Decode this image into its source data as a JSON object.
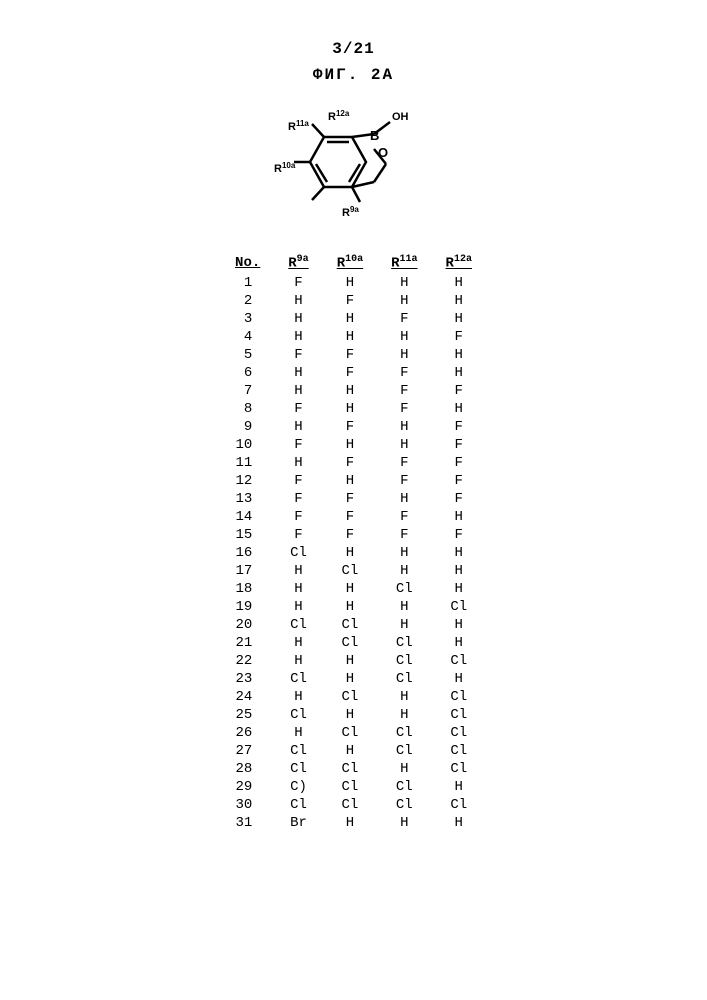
{
  "page_number": "3/21",
  "figure_label": "ФИГ. 2A",
  "structure": {
    "r9": "R",
    "r9_sup": "9a",
    "r10": "R",
    "r10_sup": "10a",
    "r11": "R",
    "r11_sup": "11a",
    "r12": "R",
    "r12_sup": "12a",
    "oh": "OH",
    "b": "B",
    "o": "O"
  },
  "headers": {
    "no": "No.",
    "r9": "R",
    "r9_sup": "9a",
    "r10": "R",
    "r10_sup": "10a",
    "r11": "R",
    "r11_sup": "11a",
    "r12": "R",
    "r12_sup": "12a"
  },
  "rows": [
    {
      "no": "1",
      "r9": "F",
      "r10": "H",
      "r11": "H",
      "r12": "H"
    },
    {
      "no": "2",
      "r9": "H",
      "r10": "F",
      "r11": "H",
      "r12": "H"
    },
    {
      "no": "3",
      "r9": "H",
      "r10": "H",
      "r11": "F",
      "r12": "H"
    },
    {
      "no": "4",
      "r9": "H",
      "r10": "H",
      "r11": "H",
      "r12": "F"
    },
    {
      "no": "5",
      "r9": "F",
      "r10": "F",
      "r11": "H",
      "r12": "H"
    },
    {
      "no": "6",
      "r9": "H",
      "r10": "F",
      "r11": "F",
      "r12": "H"
    },
    {
      "no": "7",
      "r9": "H",
      "r10": "H",
      "r11": "F",
      "r12": "F"
    },
    {
      "no": "8",
      "r9": "F",
      "r10": "H",
      "r11": "F",
      "r12": "H"
    },
    {
      "no": "9",
      "r9": "H",
      "r10": "F",
      "r11": "H",
      "r12": "F"
    },
    {
      "no": "10",
      "r9": "F",
      "r10": "H",
      "r11": "H",
      "r12": "F"
    },
    {
      "no": "11",
      "r9": "H",
      "r10": "F",
      "r11": "F",
      "r12": "F"
    },
    {
      "no": "12",
      "r9": "F",
      "r10": "H",
      "r11": "F",
      "r12": "F"
    },
    {
      "no": "13",
      "r9": "F",
      "r10": "F",
      "r11": "H",
      "r12": "F"
    },
    {
      "no": "14",
      "r9": "F",
      "r10": "F",
      "r11": "F",
      "r12": "H"
    },
    {
      "no": "15",
      "r9": "F",
      "r10": "F",
      "r11": "F",
      "r12": "F"
    },
    {
      "no": "16",
      "r9": "Cl",
      "r10": "H",
      "r11": "H",
      "r12": "H"
    },
    {
      "no": "17",
      "r9": "H",
      "r10": "Cl",
      "r11": "H",
      "r12": "H"
    },
    {
      "no": "18",
      "r9": "H",
      "r10": "H",
      "r11": "Cl",
      "r12": "H"
    },
    {
      "no": "19",
      "r9": "H",
      "r10": "H",
      "r11": "H",
      "r12": "Cl"
    },
    {
      "no": "20",
      "r9": "Cl",
      "r10": "Cl",
      "r11": "H",
      "r12": "H"
    },
    {
      "no": "21",
      "r9": "H",
      "r10": "Cl",
      "r11": "Cl",
      "r12": "H"
    },
    {
      "no": "22",
      "r9": "H",
      "r10": "H",
      "r11": "Cl",
      "r12": "Cl"
    },
    {
      "no": "23",
      "r9": "Cl",
      "r10": "H",
      "r11": "Cl",
      "r12": "H"
    },
    {
      "no": "24",
      "r9": "H",
      "r10": "Cl",
      "r11": "H",
      "r12": "Cl"
    },
    {
      "no": "25",
      "r9": "Cl",
      "r10": "H",
      "r11": "H",
      "r12": "Cl"
    },
    {
      "no": "26",
      "r9": "H",
      "r10": "Cl",
      "r11": "Cl",
      "r12": "Cl"
    },
    {
      "no": "27",
      "r9": "Cl",
      "r10": "H",
      "r11": "Cl",
      "r12": "Cl"
    },
    {
      "no": "28",
      "r9": "Cl",
      "r10": "Cl",
      "r11": "H",
      "r12": "Cl"
    },
    {
      "no": "29",
      "r9": "C)",
      "r10": "Cl",
      "r11": "Cl",
      "r12": "H"
    },
    {
      "no": "30",
      "r9": "Cl",
      "r10": "Cl",
      "r11": "Cl",
      "r12": "Cl"
    },
    {
      "no": "31",
      "r9": "Br",
      "r10": "H",
      "r11": "H",
      "r12": "H"
    }
  ]
}
